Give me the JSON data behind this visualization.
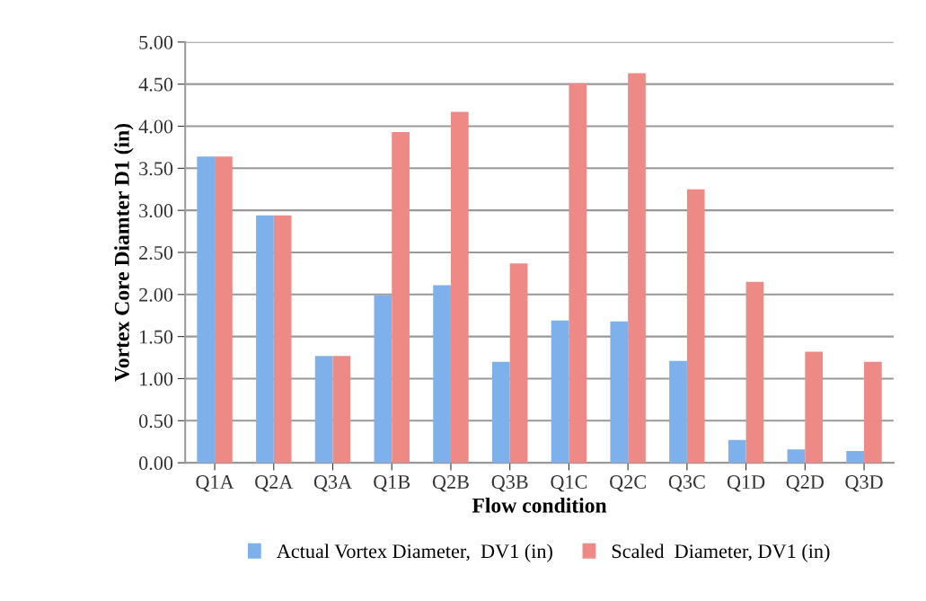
{
  "chart_data": {
    "type": "bar",
    "xlabel": "Flow condition",
    "ylabel": "Vortex Core Diamter D1 (in)",
    "categories": [
      "Q1A",
      "Q2A",
      "Q3A",
      "Q1B",
      "Q2B",
      "Q3B",
      "Q1C",
      "Q2C",
      "Q3C",
      "Q1D",
      "Q2D",
      "Q3D"
    ],
    "series": [
      {
        "name": "Actual Vortex Diameter,  DV1 (in)",
        "color": "#7eb0ec",
        "values": [
          3.64,
          2.94,
          1.27,
          1.99,
          2.11,
          1.2,
          1.69,
          1.68,
          1.21,
          0.27,
          0.16,
          0.14
        ]
      },
      {
        "name": "Scaled  Diameter, DV1 (in)",
        "color": "#ee8a85",
        "values": [
          3.64,
          2.94,
          1.27,
          3.93,
          4.17,
          2.37,
          4.51,
          4.63,
          3.25,
          2.15,
          1.32,
          1.2
        ]
      }
    ],
    "ylim": [
      0,
      5
    ],
    "yticks": [
      {
        "value": 0,
        "label": "0.00"
      },
      {
        "value": 0.5,
        "label": "0.50"
      },
      {
        "value": 1,
        "label": "1.00"
      },
      {
        "value": 1.5,
        "label": "1.50"
      },
      {
        "value": 2,
        "label": "2.00"
      },
      {
        "value": 2.5,
        "label": "2.50"
      },
      {
        "value": 3,
        "label": "3.00"
      },
      {
        "value": 3.5,
        "label": "3.50"
      },
      {
        "value": 4,
        "label": "4.00"
      },
      {
        "value": 4.5,
        "label": "4.50"
      },
      {
        "value": 5,
        "label": "5.00"
      }
    ],
    "grid": "y",
    "legend": "bottom"
  }
}
